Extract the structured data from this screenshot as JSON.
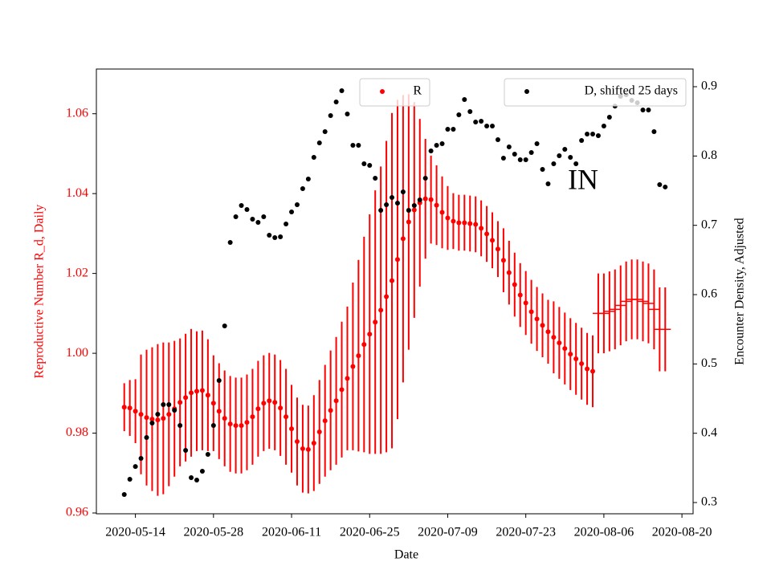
{
  "chart_data": {
    "type": "errorbar_scatter",
    "xlabel": "Date",
    "ylabel": "Reproductive Number R_d, Daily",
    "y2label": "Encounter Density, Adjusted",
    "annotation": "IN",
    "ytick_color": "red",
    "xlim": [
      "2020-05-07",
      "2020-08-22"
    ],
    "xticks": [
      "2020-05-14",
      "2020-05-28",
      "2020-06-11",
      "2020-06-25",
      "2020-07-09",
      "2020-07-23",
      "2020-08-06",
      "2020-08-20"
    ],
    "ylim": [
      0.9598,
      1.0712
    ],
    "yticks": [
      0.96,
      0.98,
      {
        "value": 1,
        "label": "1.00"
      },
      1.02,
      1.04,
      1.06
    ],
    "y2lim": [
      0.2838,
      0.9255
    ],
    "y2ticks": [
      0.3,
      0.4,
      0.5,
      0.6,
      0.7,
      0.8,
      0.9
    ],
    "x": [
      "2020-05-12",
      "2020-05-13",
      "2020-05-14",
      "2020-05-15",
      "2020-05-16",
      "2020-05-17",
      "2020-05-18",
      "2020-05-19",
      "2020-05-20",
      "2020-05-21",
      "2020-05-22",
      "2020-05-23",
      "2020-05-24",
      "2020-05-25",
      "2020-05-26",
      "2020-05-27",
      "2020-05-28",
      "2020-05-29",
      "2020-05-30",
      "2020-05-31",
      "2020-06-01",
      "2020-06-02",
      "2020-06-03",
      "2020-06-04",
      "2020-06-05",
      "2020-06-06",
      "2020-06-07",
      "2020-06-08",
      "2020-06-09",
      "2020-06-10",
      "2020-06-11",
      "2020-06-12",
      "2020-06-13",
      "2020-06-14",
      "2020-06-15",
      "2020-06-16",
      "2020-06-17",
      "2020-06-18",
      "2020-06-19",
      "2020-06-20",
      "2020-06-21",
      "2020-06-22",
      "2020-06-23",
      "2020-06-24",
      "2020-06-25",
      "2020-06-26",
      "2020-06-27",
      "2020-06-28",
      "2020-06-29",
      "2020-06-30",
      "2020-07-01",
      "2020-07-02",
      "2020-07-03",
      "2020-07-04",
      "2020-07-05",
      "2020-07-06",
      "2020-07-07",
      "2020-07-08",
      "2020-07-09",
      "2020-07-10",
      "2020-07-11",
      "2020-07-12",
      "2020-07-13",
      "2020-07-14",
      "2020-07-15",
      "2020-07-16",
      "2020-07-17",
      "2020-07-18",
      "2020-07-19",
      "2020-07-20",
      "2020-07-21",
      "2020-07-22",
      "2020-07-23",
      "2020-07-24",
      "2020-07-25",
      "2020-07-26",
      "2020-07-27",
      "2020-07-28",
      "2020-07-29",
      "2020-07-30",
      "2020-07-31",
      "2020-08-01",
      "2020-08-02",
      "2020-08-03",
      "2020-08-04",
      "2020-08-05",
      "2020-08-06",
      "2020-08-07",
      "2020-08-08",
      "2020-08-09",
      "2020-08-10",
      "2020-08-11",
      "2020-08-12",
      "2020-08-13",
      "2020-08-14",
      "2020-08-15",
      "2020-08-16",
      "2020-08-17"
    ],
    "series": [
      {
        "name": "R",
        "color": "red",
        "legend": "upper center",
        "values": [
          0.9865,
          0.9863,
          0.9855,
          0.9847,
          0.9839,
          0.9835,
          0.9833,
          0.9837,
          0.9847,
          0.9861,
          0.9877,
          0.9889,
          0.9901,
          0.9905,
          0.9907,
          0.9895,
          0.9875,
          0.9855,
          0.9837,
          0.9823,
          0.9819,
          0.9819,
          0.9827,
          0.9841,
          0.9861,
          0.9875,
          0.9881,
          0.9877,
          0.9863,
          0.9841,
          0.9811,
          0.9779,
          0.9761,
          0.9759,
          0.9775,
          0.9803,
          0.9831,
          0.9857,
          0.9881,
          0.9909,
          0.9937,
          0.9967,
          0.9994,
          1.0022,
          1.0048,
          1.0078,
          1.0108,
          1.0142,
          1.0182,
          1.0235,
          1.0287,
          1.0329,
          1.0359,
          1.0377,
          1.0387,
          1.0385,
          1.0371,
          1.0353,
          1.0339,
          1.0331,
          1.0327,
          1.0327,
          1.0325,
          1.0323,
          1.0313,
          1.0299,
          1.0283,
          1.0261,
          1.0233,
          1.0202,
          1.0172,
          1.0146,
          1.0126,
          1.0104,
          1.0086,
          1.007,
          1.0054,
          1.004,
          1.0026,
          1.0012,
          0.9998,
          0.9986,
          0.9974,
          0.9961,
          0.9955,
          null,
          null,
          null,
          null,
          null,
          null,
          null,
          null,
          null,
          null,
          null,
          null,
          null
        ],
        "errors": [
          0.006,
          0.007,
          0.008,
          0.015,
          0.017,
          0.018,
          0.019,
          0.019,
          0.018,
          0.017,
          0.016,
          0.016,
          0.016,
          0.015,
          0.015,
          0.014,
          0.012,
          0.012,
          0.012,
          0.012,
          0.012,
          0.012,
          0.012,
          0.012,
          0.012,
          0.012,
          0.012,
          0.012,
          0.012,
          0.012,
          0.011,
          0.011,
          0.011,
          0.011,
          0.012,
          0.013,
          0.014,
          0.015,
          0.016,
          0.017,
          0.018,
          0.021,
          0.024,
          0.027,
          0.03,
          0.033,
          0.036,
          0.039,
          0.042,
          0.04,
          0.036,
          0.032,
          0.027,
          0.021,
          0.015,
          0.011,
          0.01,
          0.009,
          0.008,
          0.007,
          0.007,
          0.007,
          0.007,
          0.007,
          0.007,
          0.007,
          0.007,
          0.007,
          0.008,
          0.008,
          0.008,
          0.008,
          0.008,
          0.008,
          0.008,
          0.008,
          0.008,
          0.009,
          0.009,
          0.009,
          0.009,
          0.009,
          0.009,
          0.009,
          0.009,
          null,
          null,
          null,
          null,
          null,
          null,
          null,
          null,
          null,
          null,
          null,
          null,
          null
        ]
      },
      {
        "name": "D, shifted 25 days",
        "color": "black",
        "axis": "y2",
        "legend": "upper right",
        "values": [
          0.3116,
          0.3336,
          0.352,
          0.3637,
          0.3938,
          0.4147,
          0.4274,
          0.4413,
          0.4413,
          0.4332,
          0.4112,
          0.3753,
          0.3359,
          0.3324,
          0.3452,
          0.3695,
          0.4112,
          0.4761,
          0.5548,
          0.6753,
          0.7124,
          0.7286,
          0.7228,
          0.7089,
          0.7043,
          0.7124,
          0.6857,
          0.6823,
          0.6834,
          0.7019,
          0.7193,
          0.7297,
          0.7529,
          0.7668,
          0.7981,
          0.8189,
          0.8352,
          0.8583,
          0.878,
          0.8942,
          0.8606,
          0.8155,
          0.8155,
          0.7888,
          0.7865,
          0.768,
          0.7216,
          0.7297,
          0.7402,
          0.732,
          0.7483,
          0.7216,
          0.7286,
          0.7367,
          0.768,
          0.8074,
          0.8155,
          0.8178,
          0.8386,
          0.8386,
          0.8595,
          0.8815,
          0.8641,
          0.8491,
          0.8502,
          0.8433,
          0.8433,
          0.8236,
          0.7969,
          0.8131,
          0.8027,
          0.7946,
          0.7946,
          0.805,
          0.8178,
          0.7807,
          0.7599,
          0.7888,
          0.8004,
          0.8097,
          0.7981,
          0.7888,
          0.8224,
          0.8317,
          0.8317,
          0.8294,
          0.8433,
          0.856,
          0.872,
          0.8861,
          0.8884,
          0.8803,
          0.8769,
          0.8664,
          0.8664,
          0.8352,
          0.7587,
          0.7553
        ]
      },
      {
        "color": "red",
        "marker": "hline",
        "x": [
          "2020-08-05",
          "2020-08-06",
          "2020-08-07",
          "2020-08-08",
          "2020-08-09",
          "2020-08-10",
          "2020-08-11",
          "2020-08-12",
          "2020-08-13",
          "2020-08-14",
          "2020-08-15",
          "2020-08-16",
          "2020-08-17"
        ],
        "values": [
          1.01,
          1.01,
          1.0105,
          1.011,
          1.012,
          1.013,
          1.0135,
          1.0135,
          1.013,
          1.0125,
          1.011,
          1.006,
          1.006
        ],
        "errors": [
          0.01,
          0.01,
          0.01,
          0.01,
          0.01,
          0.01,
          0.01,
          0.01,
          0.01,
          0.01,
          0.01,
          0.0105,
          0.0105
        ]
      }
    ]
  }
}
